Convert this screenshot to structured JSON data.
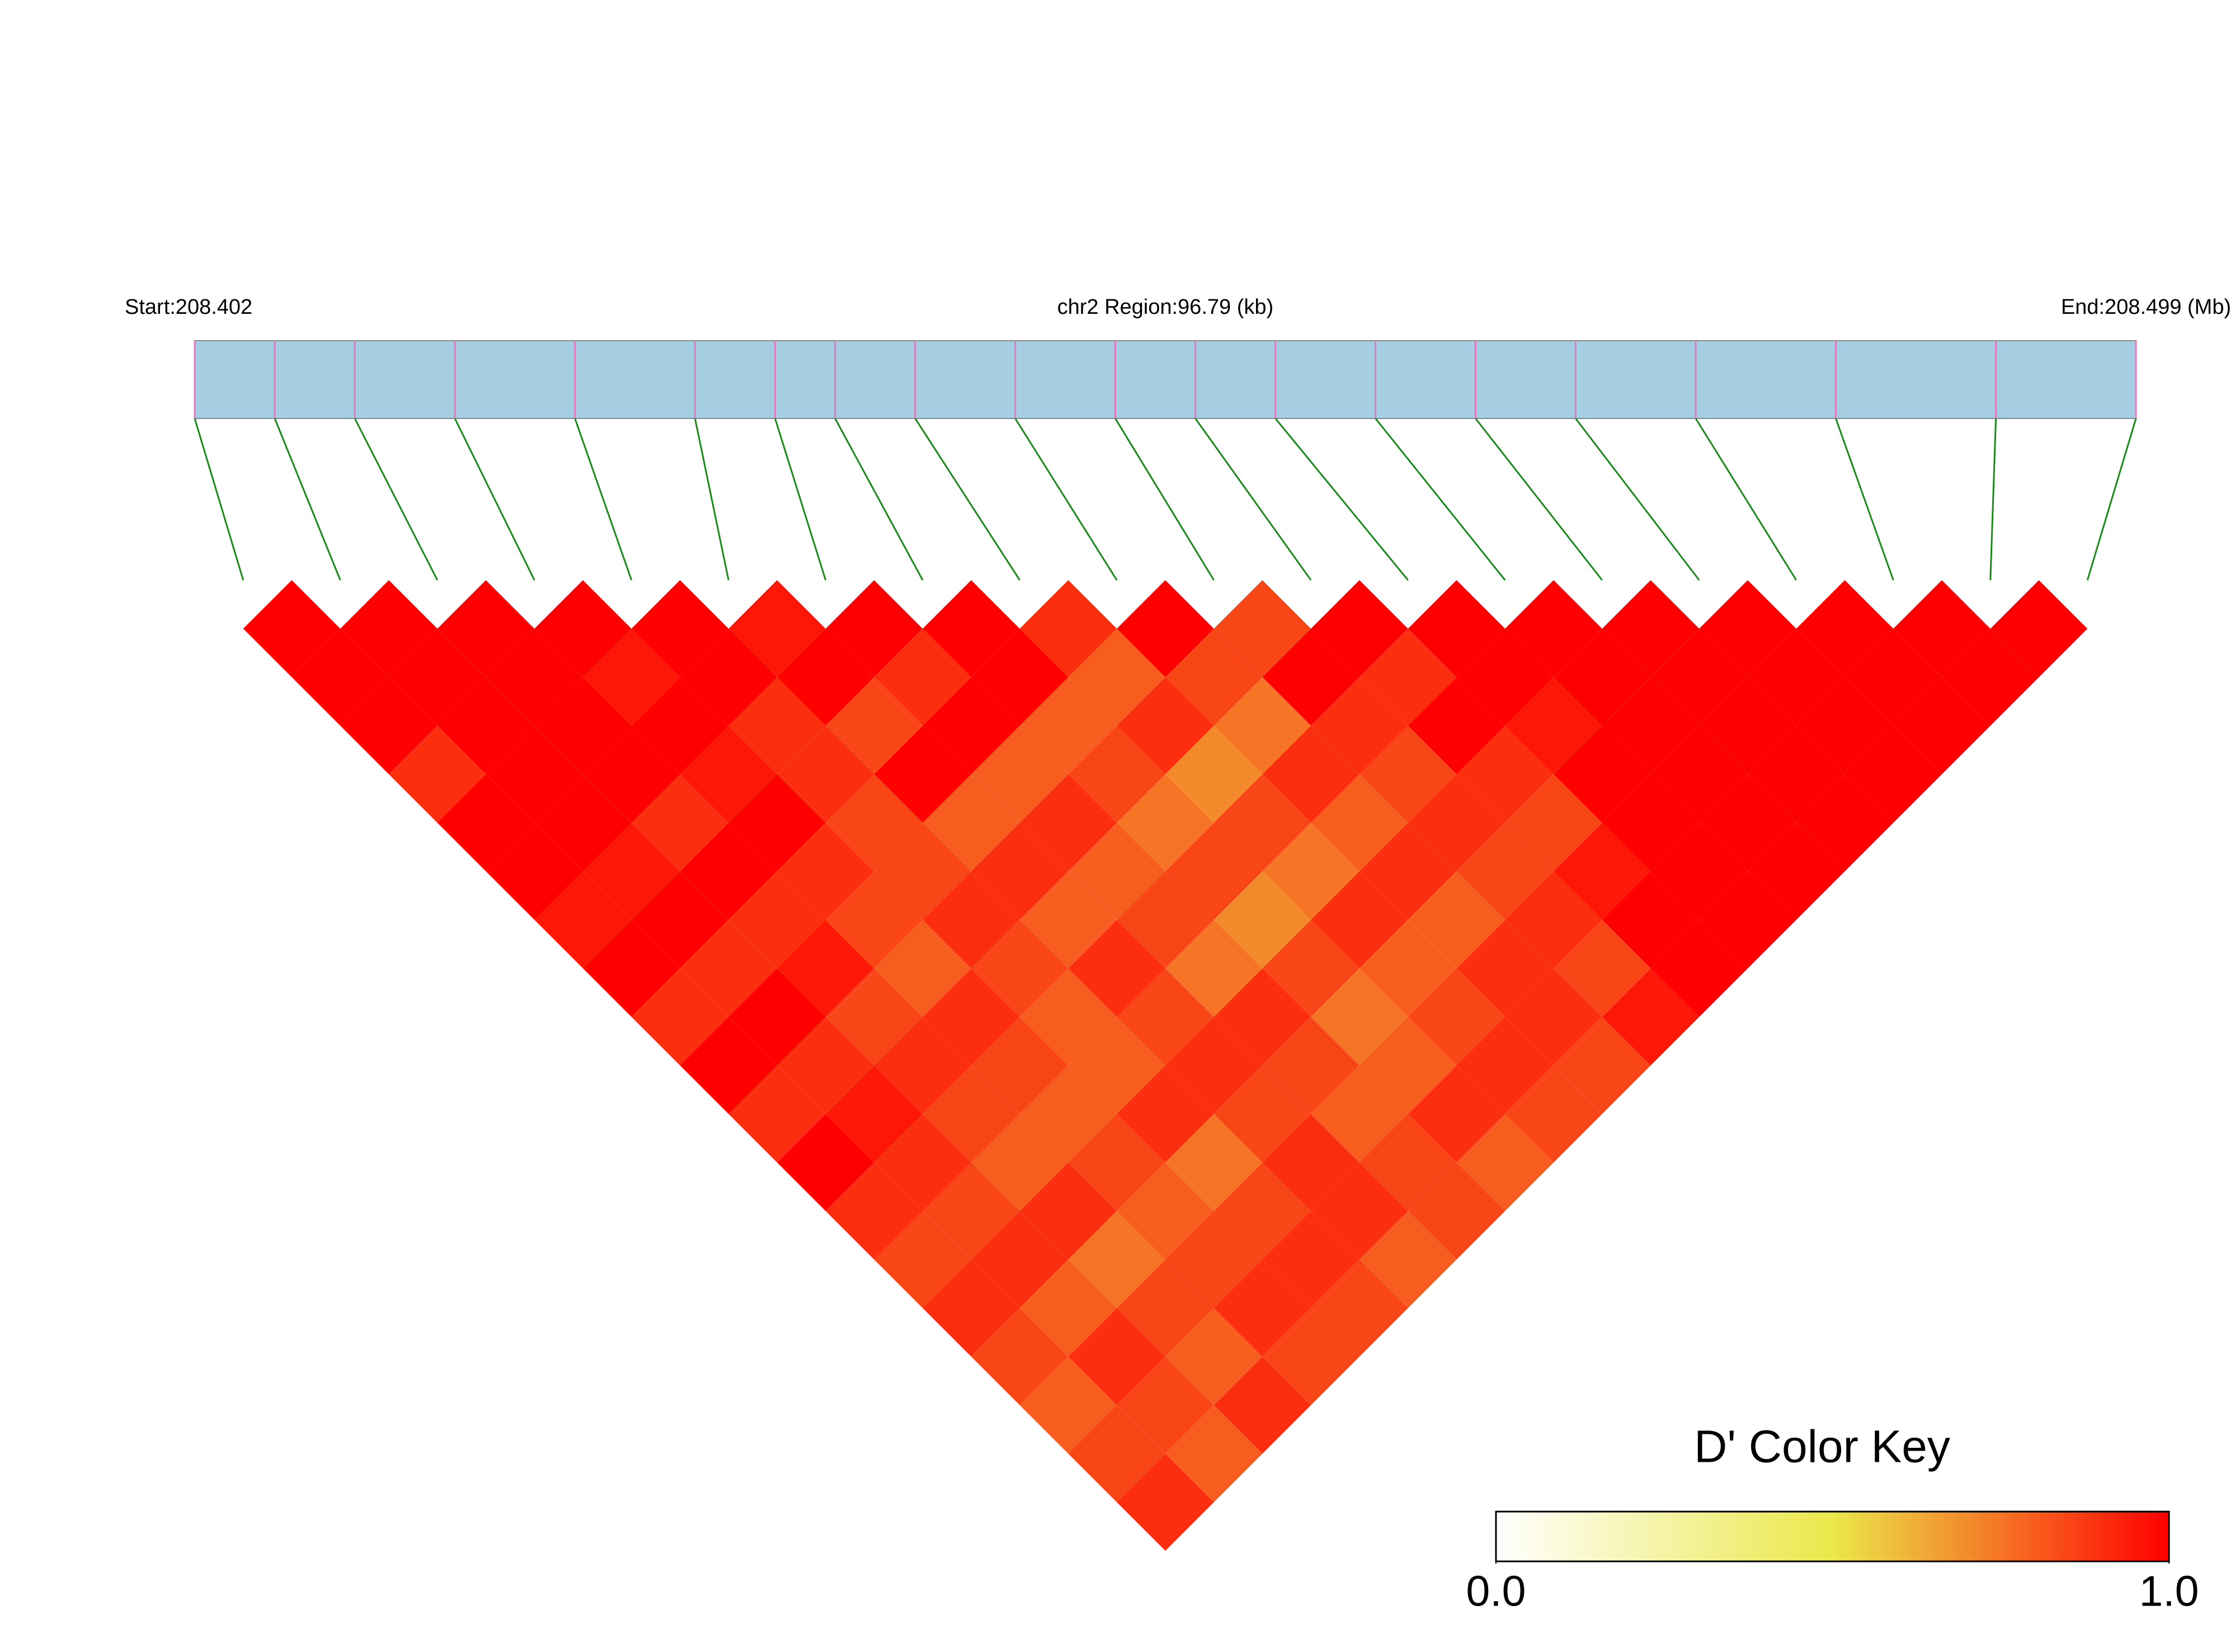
{
  "chart_data": {
    "type": "ld_heatmap",
    "start_label": "Start:208.402",
    "region_label": "chr2 Region:96.79 (kb)",
    "end_label": "End:208.499 (Mb)",
    "xlim": [
      208.402,
      208.499
    ],
    "snp_positions": [
      208.402,
      208.406,
      208.41,
      208.415,
      208.421,
      208.427,
      208.431,
      208.434,
      208.438,
      208.443,
      208.448,
      208.452,
      208.456,
      208.461,
      208.466,
      208.471,
      208.477,
      208.484,
      208.492,
      208.499
    ],
    "dprime": [
      [
        1,
        1,
        1,
        1,
        1,
        0.95,
        1,
        1,
        0.9,
        1,
        0.85,
        1,
        1,
        1,
        1,
        1,
        1,
        1,
        1
      ],
      [
        1,
        1,
        1,
        0.95,
        1,
        1,
        0.9,
        1,
        0.8,
        0.85,
        1,
        0.9,
        1,
        1,
        1,
        1,
        1,
        1
      ],
      [
        1,
        1,
        1,
        1,
        0.9,
        0.85,
        1,
        0.8,
        0.9,
        0.75,
        0.9,
        1,
        0.95,
        1,
        1,
        1,
        1
      ],
      [
        0.9,
        1,
        1,
        0.95,
        0.9,
        1,
        0.8,
        0.85,
        0.7,
        0.9,
        0.85,
        0.9,
        1,
        1,
        1,
        1
      ],
      [
        1,
        1,
        0.9,
        1,
        0.85,
        0.8,
        0.9,
        0.75,
        0.85,
        0.8,
        0.9,
        0.85,
        1,
        1,
        1
      ],
      [
        1,
        0.95,
        1,
        0.9,
        0.85,
        0.9,
        0.8,
        0.85,
        0.75,
        0.9,
        0.85,
        0.95,
        1,
        1
      ],
      [
        0.95,
        1,
        0.9,
        0.85,
        0.9,
        0.8,
        0.85,
        0.7,
        0.9,
        0.8,
        0.9,
        1,
        1
      ],
      [
        1,
        0.9,
        0.95,
        0.8,
        0.85,
        0.9,
        0.75,
        0.85,
        0.8,
        0.9,
        0.85,
        1
      ],
      [
        0.9,
        1,
        0.85,
        0.9,
        0.8,
        0.85,
        0.9,
        0.75,
        0.85,
        0.9,
        0.95
      ],
      [
        1,
        0.9,
        0.9,
        0.85,
        0.8,
        0.9,
        0.85,
        0.8,
        0.9,
        0.85
      ],
      [
        0.9,
        0.95,
        0.85,
        0.8,
        0.9,
        0.85,
        0.8,
        0.9,
        0.85
      ],
      [
        1,
        0.9,
        0.8,
        0.85,
        0.75,
        0.9,
        0.85,
        0.8
      ],
      [
        0.9,
        0.85,
        0.9,
        0.8,
        0.85,
        0.9,
        0.85
      ],
      [
        0.85,
        0.9,
        0.75,
        0.85,
        0.9,
        0.8
      ],
      [
        0.9,
        0.8,
        0.85,
        0.9,
        0.85
      ],
      [
        0.85,
        0.9,
        0.8,
        0.85
      ],
      [
        0.8,
        0.85,
        0.9
      ],
      [
        0.85,
        0.8
      ],
      [
        0.9
      ]
    ],
    "color_key": {
      "title": "D' Color Key",
      "zlim": [
        0,
        1
      ],
      "zticks": [
        {
          "value": 0,
          "label": "0.0"
        },
        {
          "value": 1,
          "label": "1.0"
        }
      ],
      "colors": [
        "#ffffff",
        "#ebe84a",
        "#ff0000"
      ]
    },
    "bar_color": "#a6cee3",
    "marker_color": "#e07bbf",
    "link_color": "#1a8a1a"
  }
}
